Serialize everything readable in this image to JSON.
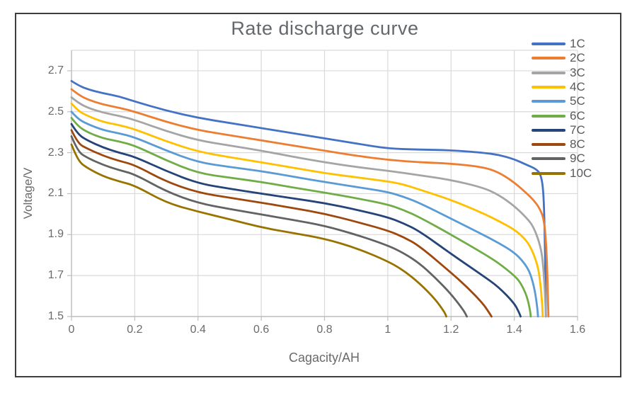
{
  "window": {
    "frame_border_color": "#3e3e3e",
    "background": "#ffffff"
  },
  "chart_data": {
    "type": "line",
    "title": "Rate discharge curve",
    "xlabel": "Cagacity/AH",
    "ylabel": "Voltage/V",
    "xlim": [
      0,
      1.6
    ],
    "ylim": [
      1.5,
      2.8
    ],
    "xticks": [
      "0",
      "0.2",
      "0.4",
      "0.6",
      "0.8",
      "1",
      "1.2",
      "1.4",
      "1.6"
    ],
    "yticks": [
      "1.5",
      "1.7",
      "1.9",
      "2.1",
      "2.3",
      "2.5",
      "2.7"
    ],
    "grid": true,
    "legend_position": "right-overlay",
    "colors": {
      "grid": "#d9d9d9",
      "axis": "#bfbfbf",
      "tick_text": "#6a6a6a",
      "title_text": "#64686c"
    },
    "series": [
      {
        "name": "1C",
        "color": "#4472C4",
        "points": [
          [
            0,
            2.65
          ],
          [
            0.02,
            2.63
          ],
          [
            0.05,
            2.61
          ],
          [
            0.1,
            2.59
          ],
          [
            0.15,
            2.575
          ],
          [
            0.2,
            2.55
          ],
          [
            0.3,
            2.505
          ],
          [
            0.4,
            2.47
          ],
          [
            0.5,
            2.445
          ],
          [
            0.6,
            2.42
          ],
          [
            0.7,
            2.395
          ],
          [
            0.8,
            2.37
          ],
          [
            0.9,
            2.345
          ],
          [
            1,
            2.32
          ],
          [
            1.1,
            2.315
          ],
          [
            1.2,
            2.312
          ],
          [
            1.3,
            2.3
          ],
          [
            1.35,
            2.29
          ],
          [
            1.4,
            2.268
          ],
          [
            1.44,
            2.24
          ],
          [
            1.47,
            2.22
          ],
          [
            1.485,
            2.19
          ],
          [
            1.493,
            2.1
          ],
          [
            1.497,
            1.85
          ],
          [
            1.5,
            1.5
          ]
        ]
      },
      {
        "name": "2C",
        "color": "#ED7D31",
        "points": [
          [
            0,
            2.61
          ],
          [
            0.02,
            2.585
          ],
          [
            0.05,
            2.56
          ],
          [
            0.1,
            2.535
          ],
          [
            0.15,
            2.52
          ],
          [
            0.2,
            2.5
          ],
          [
            0.3,
            2.45
          ],
          [
            0.4,
            2.41
          ],
          [
            0.5,
            2.385
          ],
          [
            0.6,
            2.36
          ],
          [
            0.7,
            2.335
          ],
          [
            0.8,
            2.31
          ],
          [
            0.9,
            2.285
          ],
          [
            1,
            2.265
          ],
          [
            1.1,
            2.253
          ],
          [
            1.2,
            2.247
          ],
          [
            1.3,
            2.23
          ],
          [
            1.35,
            2.205
          ],
          [
            1.4,
            2.155
          ],
          [
            1.44,
            2.1
          ],
          [
            1.46,
            2.07
          ],
          [
            1.48,
            2.03
          ],
          [
            1.495,
            1.97
          ],
          [
            1.503,
            1.8
          ],
          [
            1.508,
            1.5
          ]
        ]
      },
      {
        "name": "3C",
        "color": "#A5A5A5",
        "points": [
          [
            0,
            2.57
          ],
          [
            0.02,
            2.545
          ],
          [
            0.05,
            2.52
          ],
          [
            0.1,
            2.495
          ],
          [
            0.15,
            2.48
          ],
          [
            0.2,
            2.46
          ],
          [
            0.3,
            2.405
          ],
          [
            0.4,
            2.36
          ],
          [
            0.5,
            2.335
          ],
          [
            0.6,
            2.31
          ],
          [
            0.7,
            2.28
          ],
          [
            0.8,
            2.253
          ],
          [
            0.9,
            2.23
          ],
          [
            1,
            2.212
          ],
          [
            1.1,
            2.19
          ],
          [
            1.2,
            2.167
          ],
          [
            1.3,
            2.13
          ],
          [
            1.35,
            2.095
          ],
          [
            1.4,
            2.04
          ],
          [
            1.44,
            1.98
          ],
          [
            1.46,
            1.94
          ],
          [
            1.48,
            1.86
          ],
          [
            1.49,
            1.78
          ],
          [
            1.497,
            1.62
          ],
          [
            1.5,
            1.5
          ]
        ]
      },
      {
        "name": "4C",
        "color": "#FFC000",
        "points": [
          [
            0,
            2.54
          ],
          [
            0.02,
            2.505
          ],
          [
            0.05,
            2.48
          ],
          [
            0.1,
            2.45
          ],
          [
            0.15,
            2.435
          ],
          [
            0.2,
            2.415
          ],
          [
            0.3,
            2.355
          ],
          [
            0.4,
            2.305
          ],
          [
            0.5,
            2.278
          ],
          [
            0.6,
            2.253
          ],
          [
            0.7,
            2.227
          ],
          [
            0.8,
            2.2
          ],
          [
            0.9,
            2.18
          ],
          [
            1,
            2.16
          ],
          [
            1.05,
            2.145
          ],
          [
            1.1,
            2.12
          ],
          [
            1.2,
            2.07
          ],
          [
            1.3,
            2.005
          ],
          [
            1.35,
            1.967
          ],
          [
            1.4,
            1.925
          ],
          [
            1.43,
            1.885
          ],
          [
            1.45,
            1.845
          ],
          [
            1.47,
            1.77
          ],
          [
            1.48,
            1.7
          ],
          [
            1.488,
            1.57
          ],
          [
            1.49,
            1.5
          ]
        ]
      },
      {
        "name": "5C",
        "color": "#5B9BD5",
        "points": [
          [
            0,
            2.5
          ],
          [
            0.02,
            2.465
          ],
          [
            0.05,
            2.44
          ],
          [
            0.1,
            2.41
          ],
          [
            0.15,
            2.395
          ],
          [
            0.2,
            2.375
          ],
          [
            0.3,
            2.31
          ],
          [
            0.4,
            2.253
          ],
          [
            0.5,
            2.23
          ],
          [
            0.6,
            2.21
          ],
          [
            0.7,
            2.183
          ],
          [
            0.8,
            2.157
          ],
          [
            0.9,
            2.133
          ],
          [
            1,
            2.108
          ],
          [
            1.05,
            2.085
          ],
          [
            1.1,
            2.055
          ],
          [
            1.2,
            1.978
          ],
          [
            1.3,
            1.9
          ],
          [
            1.35,
            1.86
          ],
          [
            1.4,
            1.813
          ],
          [
            1.43,
            1.765
          ],
          [
            1.45,
            1.715
          ],
          [
            1.465,
            1.63
          ],
          [
            1.473,
            1.54
          ],
          [
            1.475,
            1.5
          ]
        ]
      },
      {
        "name": "6C",
        "color": "#70AD47",
        "points": [
          [
            0,
            2.47
          ],
          [
            0.02,
            2.43
          ],
          [
            0.05,
            2.4
          ],
          [
            0.1,
            2.37
          ],
          [
            0.15,
            2.355
          ],
          [
            0.2,
            2.335
          ],
          [
            0.3,
            2.262
          ],
          [
            0.4,
            2.2
          ],
          [
            0.5,
            2.178
          ],
          [
            0.6,
            2.157
          ],
          [
            0.7,
            2.13
          ],
          [
            0.8,
            2.105
          ],
          [
            0.9,
            2.078
          ],
          [
            1,
            2.047
          ],
          [
            1.05,
            2.02
          ],
          [
            1.1,
            1.985
          ],
          [
            1.2,
            1.9
          ],
          [
            1.3,
            1.81
          ],
          [
            1.35,
            1.762
          ],
          [
            1.4,
            1.7
          ],
          [
            1.42,
            1.665
          ],
          [
            1.44,
            1.6
          ],
          [
            1.45,
            1.53
          ],
          [
            1.452,
            1.5
          ]
        ]
      },
      {
        "name": "7C",
        "color": "#264478",
        "points": [
          [
            0,
            2.44
          ],
          [
            0.02,
            2.39
          ],
          [
            0.05,
            2.36
          ],
          [
            0.1,
            2.325
          ],
          [
            0.15,
            2.3
          ],
          [
            0.2,
            2.28
          ],
          [
            0.3,
            2.21
          ],
          [
            0.4,
            2.15
          ],
          [
            0.5,
            2.124
          ],
          [
            0.6,
            2.1
          ],
          [
            0.7,
            2.077
          ],
          [
            0.8,
            2.054
          ],
          [
            0.9,
            2.022
          ],
          [
            1,
            1.985
          ],
          [
            1.05,
            1.955
          ],
          [
            1.1,
            1.917
          ],
          [
            1.2,
            1.806
          ],
          [
            1.3,
            1.7
          ],
          [
            1.35,
            1.645
          ],
          [
            1.4,
            1.565
          ],
          [
            1.415,
            1.52
          ],
          [
            1.42,
            1.5
          ]
        ]
      },
      {
        "name": "8C",
        "color": "#9E480E",
        "points": [
          [
            0,
            2.41
          ],
          [
            0.02,
            2.345
          ],
          [
            0.05,
            2.32
          ],
          [
            0.1,
            2.285
          ],
          [
            0.15,
            2.26
          ],
          [
            0.2,
            2.24
          ],
          [
            0.3,
            2.158
          ],
          [
            0.4,
            2.105
          ],
          [
            0.5,
            2.08
          ],
          [
            0.6,
            2.056
          ],
          [
            0.7,
            2.03
          ],
          [
            0.8,
            2.002
          ],
          [
            0.9,
            1.963
          ],
          [
            1,
            1.92
          ],
          [
            1.05,
            1.888
          ],
          [
            1.1,
            1.845
          ],
          [
            1.2,
            1.714
          ],
          [
            1.25,
            1.645
          ],
          [
            1.3,
            1.565
          ],
          [
            1.32,
            1.52
          ],
          [
            1.328,
            1.5
          ]
        ]
      },
      {
        "name": "9C",
        "color": "#636363",
        "points": [
          [
            0,
            2.38
          ],
          [
            0.02,
            2.305
          ],
          [
            0.05,
            2.275
          ],
          [
            0.1,
            2.24
          ],
          [
            0.15,
            2.215
          ],
          [
            0.2,
            2.195
          ],
          [
            0.3,
            2.11
          ],
          [
            0.4,
            2.054
          ],
          [
            0.5,
            2.025
          ],
          [
            0.6,
            1.998
          ],
          [
            0.7,
            1.972
          ],
          [
            0.8,
            1.943
          ],
          [
            0.9,
            1.9
          ],
          [
            1,
            1.847
          ],
          [
            1.05,
            1.81
          ],
          [
            1.1,
            1.76
          ],
          [
            1.15,
            1.69
          ],
          [
            1.2,
            1.61
          ],
          [
            1.24,
            1.53
          ],
          [
            1.25,
            1.5
          ]
        ]
      },
      {
        "name": "10C",
        "color": "#997300",
        "points": [
          [
            0,
            2.34
          ],
          [
            0.02,
            2.26
          ],
          [
            0.05,
            2.225
          ],
          [
            0.1,
            2.185
          ],
          [
            0.15,
            2.16
          ],
          [
            0.2,
            2.14
          ],
          [
            0.3,
            2.055
          ],
          [
            0.4,
            2.012
          ],
          [
            0.5,
            1.975
          ],
          [
            0.6,
            1.935
          ],
          [
            0.7,
            1.908
          ],
          [
            0.8,
            1.88
          ],
          [
            0.9,
            1.835
          ],
          [
            1,
            1.77
          ],
          [
            1.05,
            1.725
          ],
          [
            1.1,
            1.663
          ],
          [
            1.15,
            1.585
          ],
          [
            1.18,
            1.52
          ],
          [
            1.185,
            1.5
          ]
        ]
      }
    ]
  }
}
